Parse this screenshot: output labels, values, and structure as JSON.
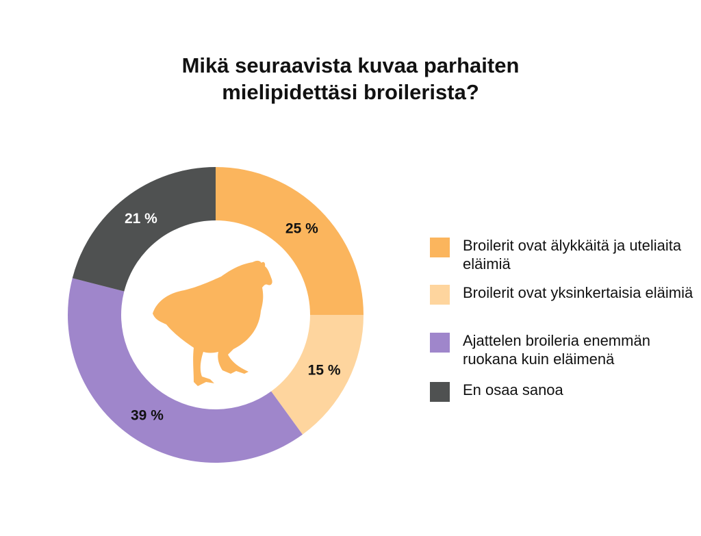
{
  "chart_data": {
    "type": "pie",
    "title": "Mikä seuraavista kuvaa parhaiten mielipidettäsi broilerista?",
    "title_lines": [
      "Mikä seuraavista kuvaa parhaiten",
      "mielipidettäsi broilerista?"
    ],
    "categories": [
      "Broilerit ovat älykkäitä ja uteliaita eläimiä",
      "Broilerit ovat yksinkertaisia eläimiä",
      "Ajattelen broileria enemmän ruokana kuin eläimenä",
      "En osaa sanoa"
    ],
    "values": [
      25,
      15,
      39,
      21
    ],
    "value_labels": [
      "25 %",
      "15 %",
      "39 %",
      "21 %"
    ],
    "colors": [
      "#FBB55D",
      "#FED59E",
      "#9F86CB",
      "#4F5151"
    ],
    "legend_position": "right",
    "center_icon": "chicken-icon",
    "center_icon_color": "#FBB55D"
  }
}
